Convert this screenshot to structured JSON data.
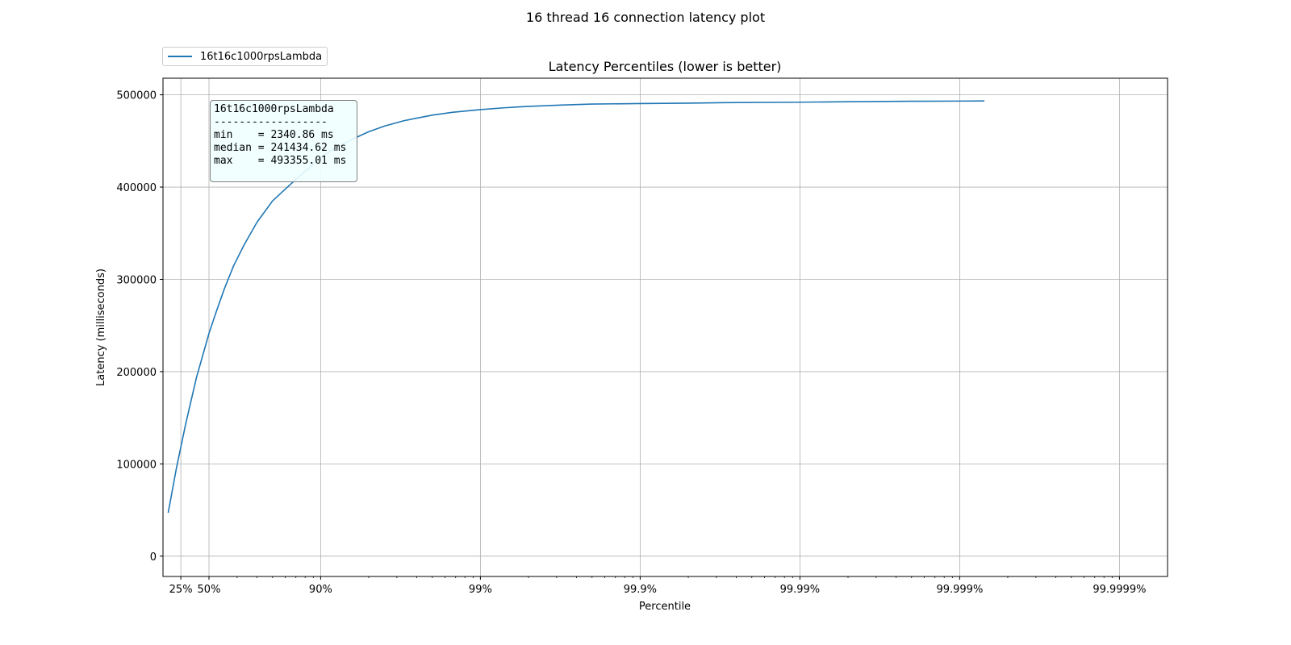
{
  "figure": {
    "title": "16 thread 16 connection latency plot"
  },
  "chart_data": {
    "type": "line",
    "title": "Latency Percentiles (lower is better)",
    "xlabel": "Percentile",
    "ylabel": "Latency (milliseconds)",
    "x_scale": "log of 1/(1-percentile)",
    "xlim": [
      3,
      99.99995
    ],
    "ylim": [
      -22000,
      518000
    ],
    "x_ticks": [
      {
        "value": 25,
        "label": "25%"
      },
      {
        "value": 50,
        "label": "50%"
      },
      {
        "value": 90,
        "label": "90%"
      },
      {
        "value": 99,
        "label": "99%"
      },
      {
        "value": 99.9,
        "label": "99.9%"
      },
      {
        "value": 99.99,
        "label": "99.99%"
      },
      {
        "value": 99.999,
        "label": "99.999%"
      },
      {
        "value": 99.9999,
        "label": "99.9999%"
      }
    ],
    "y_ticks": [
      0,
      100000,
      200000,
      300000,
      400000,
      500000
    ],
    "y_tick_labels": [
      "0",
      "100000",
      "200000",
      "300000",
      "400000",
      "500000"
    ],
    "grid": true,
    "legend_position": "above-left",
    "series": [
      {
        "name": "16t16c1000rpsLambda",
        "color": "#1f77b4",
        "x": [
          10,
          20,
          30,
          40,
          50,
          55,
          60,
          65,
          70,
          75,
          80,
          85,
          90,
          92,
          93.7,
          95,
          96,
          97,
          98,
          98.5,
          99,
          99.3,
          99.5,
          99.7,
          99.8,
          99.9,
          99.95,
          99.97,
          99.99,
          99.995,
          99.998,
          99.999,
          99.9993
        ],
        "y": [
          47000,
          95000,
          143000,
          193000,
          241434.62,
          265000,
          290000,
          315000,
          338000,
          362000,
          385000,
          405000,
          432000,
          443000,
          452000,
          460000,
          466000,
          472000,
          478000,
          481000,
          484000,
          486000,
          487500,
          489000,
          490000,
          490500,
          491000,
          491500,
          492000,
          492500,
          493000,
          493200,
          493355.01
        ]
      }
    ],
    "annotation": {
      "lines": [
        "16t16c1000rpsLambda",
        "------------------",
        "min    = 2340.86 ms",
        "median = 241434.62 ms",
        "max    = 493355.01 ms"
      ]
    }
  }
}
